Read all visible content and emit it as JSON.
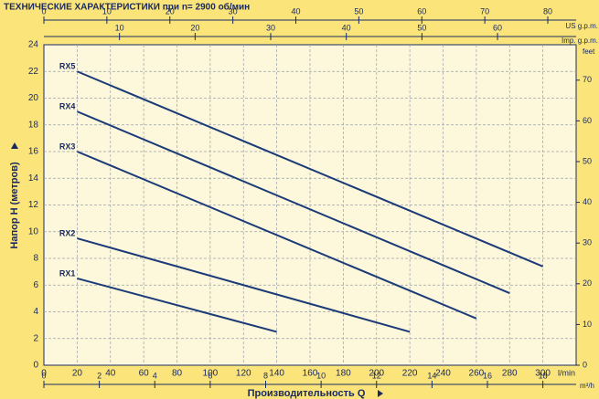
{
  "chart_data": {
    "type": "line",
    "title": "ТЕХНИЧЕСКИЕ ХАРАКТЕРИСТИКИ при n= 2900 об/мин",
    "ylabel": "Напор Н  (метров)",
    "xlabel": "Производительность Q",
    "xunit": "l/min",
    "xlim": [
      0,
      320
    ],
    "xticks": [
      0,
      20,
      40,
      60,
      80,
      100,
      120,
      140,
      160,
      180,
      200,
      220,
      240,
      260,
      280,
      300
    ],
    "ylim": [
      0,
      24
    ],
    "yticks": [
      0,
      2,
      4,
      6,
      8,
      10,
      12,
      14,
      16,
      18,
      20,
      22,
      24
    ],
    "grid": true,
    "series": [
      {
        "name": "RX1",
        "color": "#1b3a78",
        "x": [
          20,
          140
        ],
        "values": [
          6.5,
          2.5
        ]
      },
      {
        "name": "RX2",
        "color": "#1b3a78",
        "x": [
          20,
          220
        ],
        "values": [
          9.5,
          2.5
        ]
      },
      {
        "name": "RX3",
        "color": "#1b3a78",
        "x": [
          20,
          260
        ],
        "values": [
          16,
          3.5
        ]
      },
      {
        "name": "RX4",
        "color": "#1b3a78",
        "x": [
          20,
          280
        ],
        "values": [
          19,
          5.4
        ]
      },
      {
        "name": "RX5",
        "color": "#1b3a78",
        "x": [
          20,
          300
        ],
        "values": [
          22,
          7.4
        ]
      }
    ],
    "axes": {
      "m3h": {
        "label": "m³/h",
        "lim": [
          0,
          19.2
        ],
        "ticks": [
          0,
          2,
          4,
          6,
          8,
          10,
          12,
          14,
          16,
          18
        ]
      },
      "usgpm": {
        "label": "US g.p.m.",
        "lim": [
          0,
          84.5
        ],
        "ticks": [
          0,
          10,
          20,
          30,
          40,
          50,
          60,
          70,
          80
        ]
      },
      "impgpm": {
        "label": "Imp. g.p.m.",
        "lim": [
          0,
          70.4
        ],
        "ticks": [
          10,
          20,
          30,
          40,
          50,
          60
        ]
      },
      "feet": {
        "label": "feet",
        "lim": [
          0,
          78.7
        ],
        "ticks": [
          0,
          10,
          20,
          30,
          40,
          50,
          60,
          70
        ]
      }
    }
  }
}
